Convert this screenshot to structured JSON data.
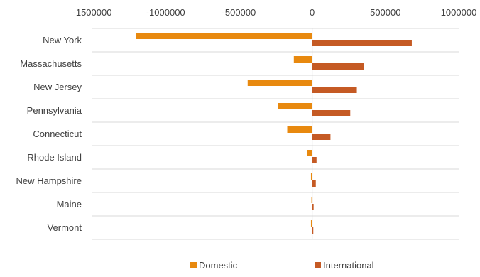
{
  "chart_data": {
    "type": "bar",
    "orientation": "horizontal",
    "categories": [
      "New York",
      "Massachusetts",
      "New Jersey",
      "Pennsylvania",
      "Connecticut",
      "Rhode Island",
      "New Hampshire",
      "Maine",
      "Vermont"
    ],
    "series": [
      {
        "name": "Domestic",
        "color": "#E8890F",
        "values": [
          -1200000,
          -125000,
          -440000,
          -235000,
          -170000,
          -35000,
          -8000,
          -5000,
          -8000
        ]
      },
      {
        "name": "International",
        "color": "#C55A24",
        "values": [
          680000,
          355000,
          305000,
          260000,
          125000,
          30000,
          25000,
          10000,
          8000
        ]
      }
    ],
    "x_ticks": [
      "-1500000",
      "-1000000",
      "-500000",
      "0",
      "500000",
      "1000000"
    ],
    "xlim": [
      -1500000,
      1000000
    ],
    "x_axis_position": "top",
    "grid": true,
    "legend_position": "bottom",
    "title": "",
    "xlabel": "",
    "ylabel": ""
  }
}
